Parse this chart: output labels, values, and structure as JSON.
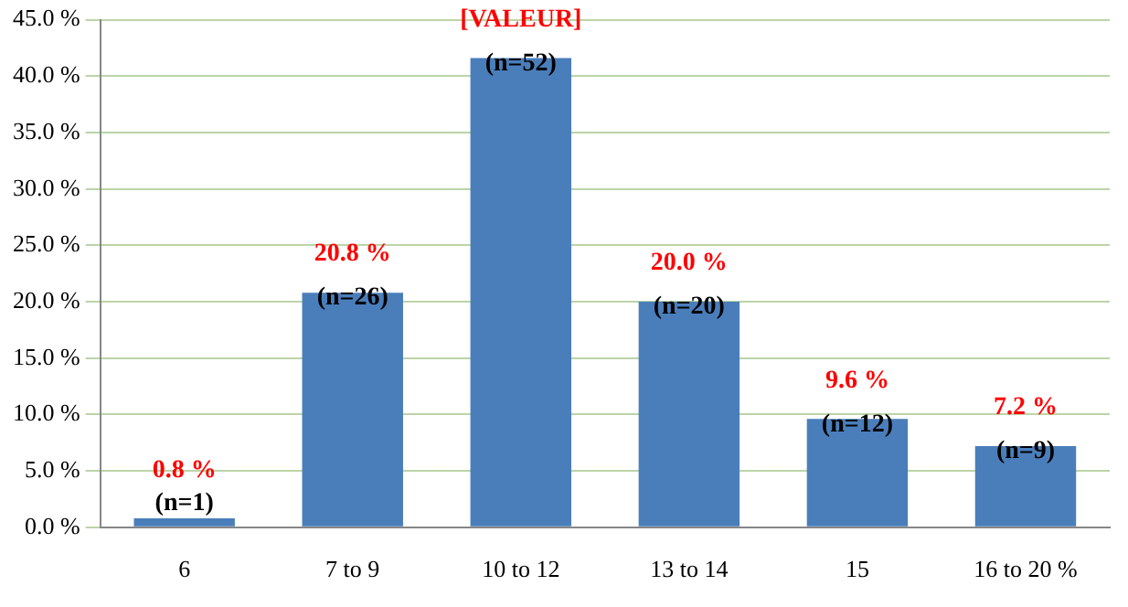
{
  "chart_data": {
    "type": "bar",
    "categories": [
      "6",
      "7 to 9",
      "10 to 12",
      "13 to 14",
      "15",
      "16 to 20 %"
    ],
    "values": [
      0.8,
      20.8,
      41.6,
      20.0,
      9.6,
      7.2
    ],
    "color": "#4a7ebb",
    "value_labels": [
      "0.8 %",
      "20.8 %",
      "[VALEUR]",
      "20.0 %",
      "9.6 %",
      "7.2 %"
    ],
    "annotations": [
      {
        "text": "(n=1)",
        "x": "6",
        "y": 0.8
      },
      {
        "text": "(n=26)",
        "x": "7 to 9",
        "y": 20.8
      },
      {
        "text": "(n=52)",
        "x": "10 to 12",
        "y": 41.6
      },
      {
        "text": "(n=20)",
        "x": "13 to 14",
        "y": 20.0
      },
      {
        "text": "(n=12)",
        "x": "15",
        "y": 9.6
      },
      {
        "text": "(n=9)",
        "x": "16 to 20 %",
        "y": 7.2
      }
    ],
    "ylim": [
      0,
      45
    ],
    "yticks": [
      {
        "value": 0,
        "label": "0.0 %"
      },
      {
        "value": 5,
        "label": "5.0 %"
      },
      {
        "value": 10,
        "label": "10.0 %"
      },
      {
        "value": 15,
        "label": "15.0 %"
      },
      {
        "value": 20,
        "label": "20.0 %"
      },
      {
        "value": 25,
        "label": "25.0 %"
      },
      {
        "value": 30,
        "label": "30.0 %"
      },
      {
        "value": 35,
        "label": "35.0 %"
      },
      {
        "value": 40,
        "label": "40.0 %"
      },
      {
        "value": 45,
        "label": "45.0 %"
      }
    ],
    "grid": "y"
  }
}
